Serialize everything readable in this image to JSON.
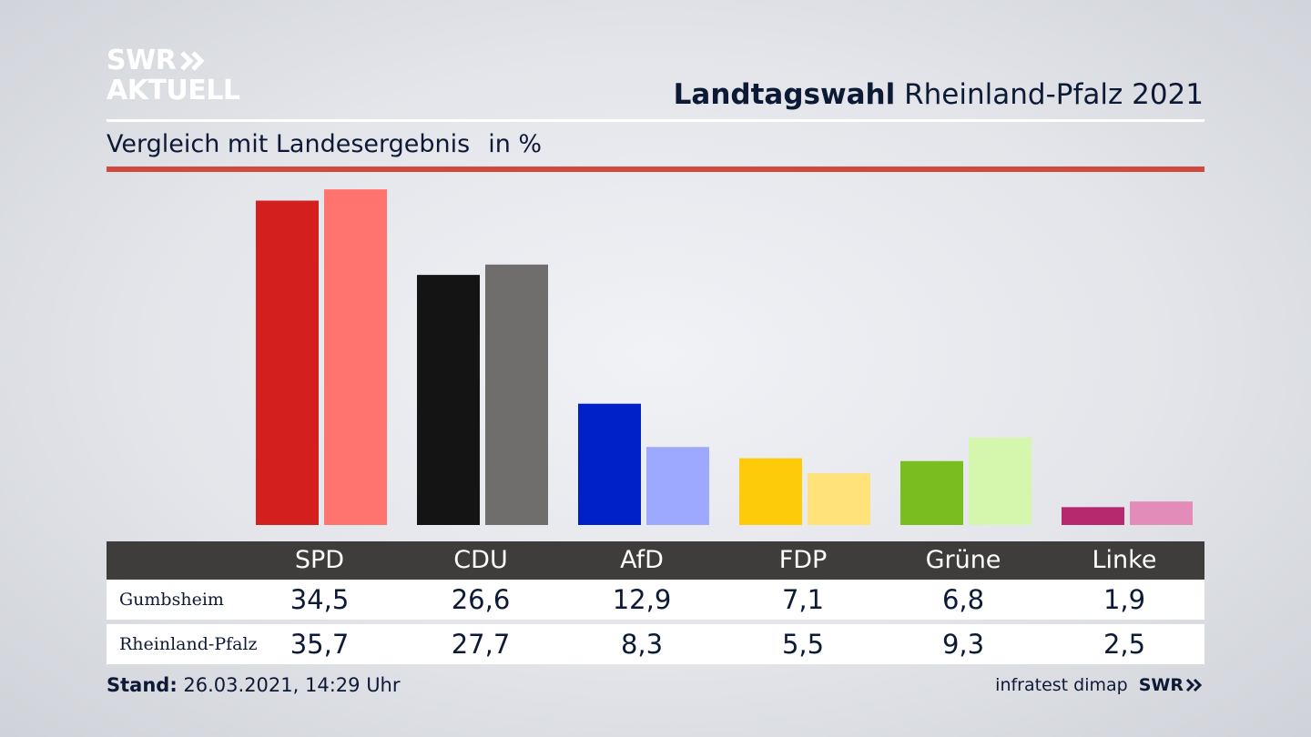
{
  "logo": {
    "top": "SWR",
    "bottom": "AKTUELL"
  },
  "header": {
    "title_bold": "Landtagswahl",
    "title_rest": "Rheinland-Pfalz 2021"
  },
  "subtitle": {
    "text": "Vergleich mit Landesergebnis",
    "unit": "in %"
  },
  "colors": {
    "accent_rule": "#cf4b3d",
    "table_header": "#3f3d3b"
  },
  "chart_data": {
    "type": "bar",
    "categories": [
      "SPD",
      "CDU",
      "AfD",
      "FDP",
      "Grüne",
      "Linke"
    ],
    "series": [
      {
        "name": "Gumbsheim",
        "values": [
          34.5,
          26.6,
          12.9,
          7.1,
          6.8,
          1.9
        ],
        "colors": [
          "#d41f1f",
          "#141414",
          "#0020c8",
          "#fdcb0a",
          "#79bd1e",
          "#b6296e"
        ]
      },
      {
        "name": "Rheinland-Pfalz",
        "values": [
          35.7,
          27.7,
          8.3,
          5.5,
          9.3,
          2.5
        ],
        "colors": [
          "#ff746e",
          "#6f6e6d",
          "#9ca9ff",
          "#ffe27a",
          "#d4f6ad",
          "#e38cb9"
        ]
      }
    ],
    "title": "Landtagswahl Rheinland-Pfalz 2021",
    "subtitle": "Vergleich mit Landesergebnis",
    "ylabel": "in %",
    "ylim": [
      0,
      36
    ],
    "grid": false
  },
  "table": {
    "headers": [
      "SPD",
      "CDU",
      "AfD",
      "FDP",
      "Grüne",
      "Linke"
    ],
    "rows": [
      {
        "label": "Gumbsheim",
        "values": [
          "34,5",
          "26,6",
          "12,9",
          "7,1",
          "6,8",
          "1,9"
        ]
      },
      {
        "label": "Rheinland-Pfalz",
        "values": [
          "35,7",
          "27,7",
          "8,3",
          "5,5",
          "9,3",
          "2,5"
        ]
      }
    ]
  },
  "footer": {
    "stand_label": "Stand:",
    "stand_value": "26.03.2021, 14:29 Uhr",
    "source": "infratest dimap",
    "brand": "SWR"
  }
}
